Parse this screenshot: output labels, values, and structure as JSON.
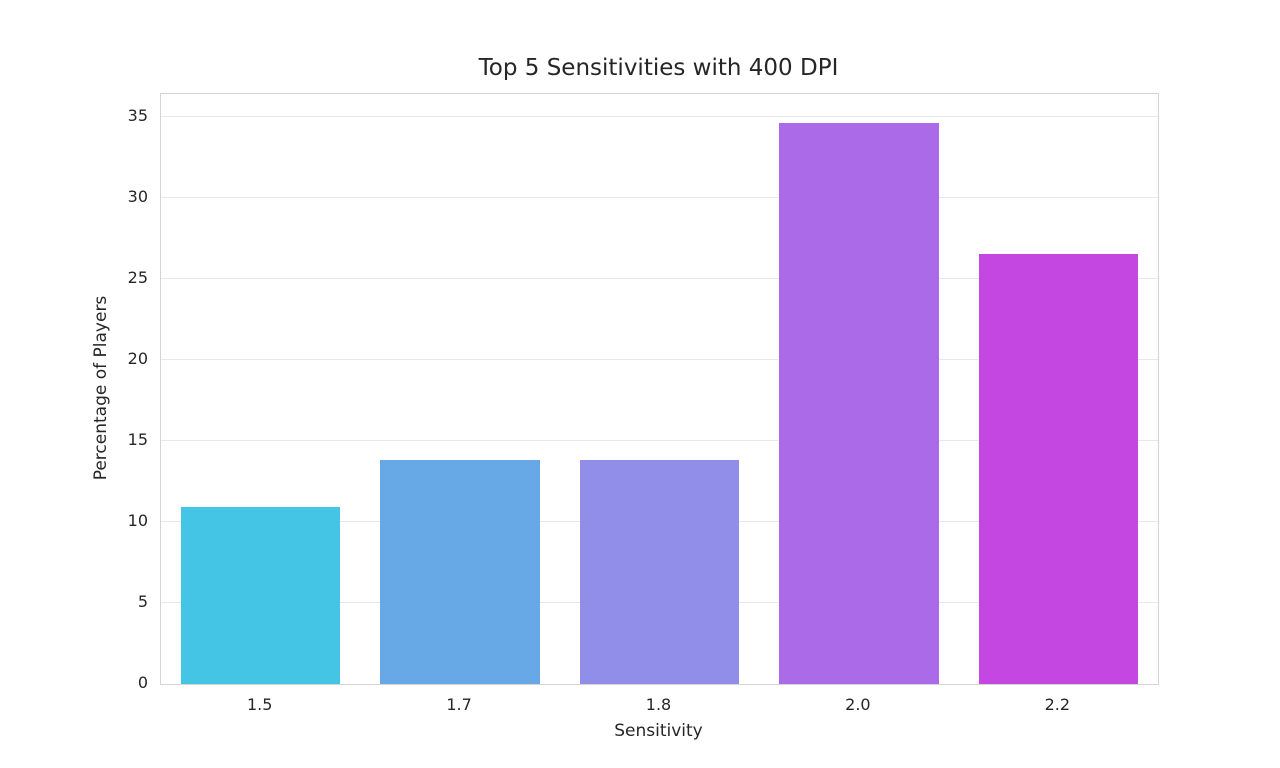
{
  "chart_data": {
    "type": "bar",
    "title": "Top 5 Sensitivities with 400 DPI",
    "xlabel": "Sensitivity",
    "ylabel": "Percentage of Players",
    "categories": [
      "1.5",
      "1.7",
      "1.8",
      "2.0",
      "2.2"
    ],
    "values": [
      10.9,
      13.8,
      13.8,
      34.6,
      26.5
    ],
    "bar_colors": [
      "#45c5e5",
      "#67a9e6",
      "#918eea",
      "#ab6be8",
      "#c547e2"
    ],
    "yticks": [
      0,
      5,
      10,
      15,
      20,
      25,
      30,
      35
    ],
    "ylim": [
      0,
      36.4
    ],
    "bar_width_fraction": 0.8,
    "grid": true,
    "legend": false,
    "colors": {
      "background": "#ffffff",
      "grid": "#e8e8e8",
      "spine": "#d4d4d4",
      "text": "#262626"
    }
  }
}
